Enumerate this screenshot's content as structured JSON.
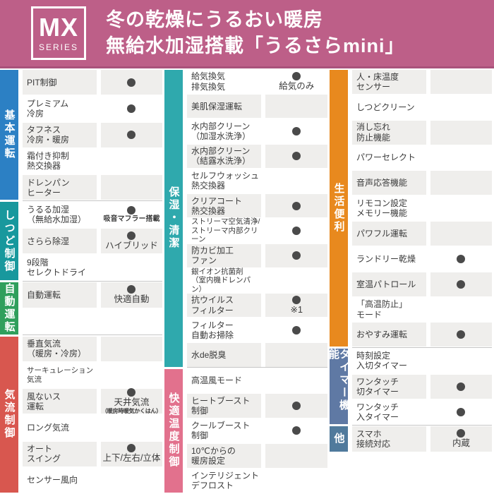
{
  "header": {
    "series_code": "MX",
    "series_label": "SERIES",
    "title_line1": "冬の乾燥にうるおい暖房",
    "title_line2": "無給水加湿搭載「うるさらmini」",
    "bg_color": "#bd5f88"
  },
  "palette": {
    "row_gray": "#efeeec",
    "row_white": "#ffffff",
    "dot_color": "#4a4a4a",
    "divider": "#c6c6c6"
  },
  "columns": [
    {
      "start": "gray",
      "sections": [
        {
          "label": "基本運転",
          "color": "#2c80c4",
          "rows": [
            {
              "label": "PIT制御",
              "dot": true
            },
            {
              "label": "プレミアム\n冷房",
              "dot": true
            },
            {
              "label": "タフネス\n冷房・暖房",
              "dot": true
            },
            {
              "label": "霜付き抑制\n熱交換器"
            },
            {
              "label": "ドレンパン\nヒーター"
            }
          ]
        },
        {
          "label": "しつど制御",
          "color": "#18989d",
          "rows": [
            {
              "label": "うるる加湿\n（無給水加湿）",
              "dot": true,
              "note": "吸音マフラー搭載"
            },
            {
              "label": "さらら除湿",
              "dot": true,
              "text": "ハイブリッド"
            },
            {
              "label": "9段階\nセレクトドライ"
            }
          ]
        },
        {
          "label": "自動運転",
          "color": "#2f9f5c",
          "rows": [
            {
              "label": "自動運転",
              "dot": true,
              "text": "快適自動"
            },
            {
              "label": ""
            }
          ]
        },
        {
          "label": "気流制御",
          "color": "#d8574f",
          "rows": [
            {
              "label": "垂直気流\n（暖房・冷房）"
            },
            {
              "label": "サーキュレーション\n気流"
            },
            {
              "label": "風ないス\n運転",
              "dot": true,
              "text": "天井気流",
              "sub": "（暖房時暖気かくはん）"
            },
            {
              "label": "ロング気流"
            },
            {
              "label": "オート\nスイング",
              "dot": true,
              "text": "上下/左右/立体"
            },
            {
              "label": "センサー風向"
            }
          ]
        }
      ]
    },
    {
      "start": "white",
      "sections": [
        {
          "label": "保湿・清潔",
          "color": "#2fa9ad",
          "rows": [
            {
              "label": "給気換気\n排気換気",
              "dot": true,
              "text": "給気のみ"
            },
            {
              "label": "美肌保湿運転"
            },
            {
              "label": "水内部クリーン\n（加湿水洗浄）",
              "dot": true
            },
            {
              "label": "水内部クリーン\n（結露水洗浄）",
              "dot": true
            },
            {
              "label": "セルフウォッシュ\n熱交換器"
            },
            {
              "label": "クリアコート\n熱交換器",
              "dot": true
            },
            {
              "label": "ストリーマ空気清浄/\nストリーマ内部クリーン",
              "dot": true
            },
            {
              "label": "防カビ加工\nファン",
              "dot": true
            },
            {
              "label": "銀イオン抗菌剤\n（室内機ドレンパン）"
            },
            {
              "label": "抗ウイルス\nフィルター",
              "dot": true,
              "text": "※1"
            },
            {
              "label": "フィルター\n自動お掃除",
              "dot": true
            },
            {
              "label": "水de脱臭"
            }
          ]
        },
        {
          "label": "快適温度制御",
          "color": "#e2718d",
          "rows": [
            {
              "label": "高温風モード"
            },
            {
              "label": "ヒートブースト\n制御",
              "dot": true
            },
            {
              "label": "クールブースト\n制御",
              "dot": true
            },
            {
              "label": "10℃からの\n暖房設定"
            },
            {
              "label": "インテリジェント\nデフロスト"
            }
          ]
        }
      ]
    },
    {
      "start": "gray",
      "sections": [
        {
          "label": "生活便利",
          "color": "#e8891e",
          "rows": [
            {
              "label": "人・床温度\nセンサー"
            },
            {
              "label": "しつどクリーン"
            },
            {
              "label": "消し忘れ\n防止機能"
            },
            {
              "label": "パワーセレクト"
            },
            {
              "label": "音声応答機能"
            },
            {
              "label": "リモコン設定\nメモリー機能"
            },
            {
              "label": "パワフル運転"
            },
            {
              "label": "ランドリー乾燥",
              "dot": true
            },
            {
              "label": "室温パトロール",
              "dot": true
            },
            {
              "label": "「高温防止」\nモード"
            },
            {
              "label": "おやすみ運転",
              "dot": true
            }
          ]
        },
        {
          "label": "タイマー機能",
          "color": "#5f79a4",
          "rows": [
            {
              "label": "時刻設定\n入切タイマー"
            },
            {
              "label": "ワンタッチ\n切タイマー",
              "dot": true
            },
            {
              "label": "ワンタッチ\n入タイマー",
              "dot": true
            }
          ]
        },
        {
          "label": "他",
          "color": "#507a9c",
          "rows": [
            {
              "label": "スマホ\n接続対応",
              "dot": true,
              "text": "内蔵"
            }
          ]
        }
      ]
    }
  ]
}
